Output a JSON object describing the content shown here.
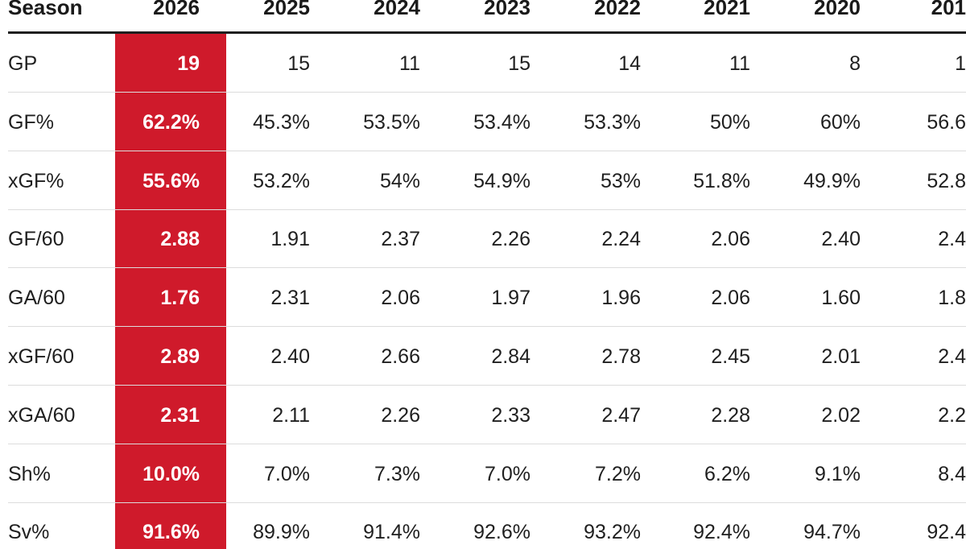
{
  "chart_data": {
    "type": "table",
    "header": {
      "label": "Season",
      "columns": [
        "2026",
        "2025",
        "2024",
        "2023",
        "2022",
        "2021",
        "2020",
        "201"
      ]
    },
    "highlight_color": "#cf1a2b",
    "highlight_column": "2026",
    "rows": [
      {
        "label": "GP",
        "cells": [
          "19",
          "15",
          "11",
          "15",
          "14",
          "11",
          "8",
          "1"
        ]
      },
      {
        "label": "GF%",
        "cells": [
          "62.2%",
          "45.3%",
          "53.5%",
          "53.4%",
          "53.3%",
          "50%",
          "60%",
          "56.6"
        ]
      },
      {
        "label": "xGF%",
        "cells": [
          "55.6%",
          "53.2%",
          "54%",
          "54.9%",
          "53%",
          "51.8%",
          "49.9%",
          "52.8"
        ]
      },
      {
        "label": "GF/60",
        "cells": [
          "2.88",
          "1.91",
          "2.37",
          "2.26",
          "2.24",
          "2.06",
          "2.40",
          "2.4"
        ]
      },
      {
        "label": "GA/60",
        "cells": [
          "1.76",
          "2.31",
          "2.06",
          "1.97",
          "1.96",
          "2.06",
          "1.60",
          "1.8"
        ]
      },
      {
        "label": "xGF/60",
        "cells": [
          "2.89",
          "2.40",
          "2.66",
          "2.84",
          "2.78",
          "2.45",
          "2.01",
          "2.4"
        ]
      },
      {
        "label": "xGA/60",
        "cells": [
          "2.31",
          "2.11",
          "2.26",
          "2.33",
          "2.47",
          "2.28",
          "2.02",
          "2.2"
        ]
      },
      {
        "label": "Sh%",
        "cells": [
          "10.0%",
          "7.0%",
          "7.3%",
          "7.0%",
          "7.2%",
          "6.2%",
          "9.1%",
          "8.4"
        ]
      },
      {
        "label": "Sv%",
        "cells": [
          "91.6%",
          "89.9%",
          "91.4%",
          "92.6%",
          "93.2%",
          "92.4%",
          "94.7%",
          "92.4"
        ]
      }
    ]
  }
}
